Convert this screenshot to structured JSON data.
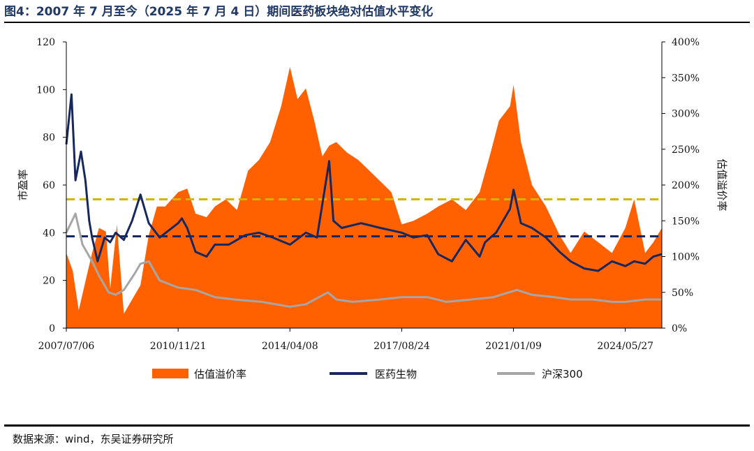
{
  "header": {
    "title": "图4：2007 年 7 月至今（2025 年 7 月 4 日）期间医药板块绝对估值水平变化"
  },
  "footer": {
    "source": "数据来源：wind，东吴证券研究所"
  },
  "chart_data": {
    "type": "line",
    "title": "",
    "ylabel_left": "市盈率",
    "ylabel_right": "估值溢价率",
    "ylim_left": [
      0,
      120
    ],
    "ylim_right": [
      0,
      4.0
    ],
    "yticks_left": [
      "0",
      "20",
      "40",
      "60",
      "80",
      "100",
      "120"
    ],
    "yticks_right": [
      "0%",
      "50%",
      "100%",
      "150%",
      "200%",
      "250%",
      "300%",
      "350%",
      "400%"
    ],
    "xlim": [
      "2007/07/06",
      "2025/07/04"
    ],
    "xtick_labels": [
      "2007/07/06",
      "2010/11/21",
      "2014/04/08",
      "2017/08/24",
      "2021/01/09",
      "2024/05/27"
    ],
    "reference_lines": [
      {
        "value": 54,
        "axis": "left",
        "color": "#d4b400",
        "style": "dashed"
      },
      {
        "value": 38.5,
        "axis": "left",
        "color": "#16285e",
        "style": "dashed"
      }
    ],
    "legend": [
      "估值溢价率",
      "医药生物",
      "沪深300"
    ],
    "legend_position": "bottom",
    "colors": {
      "premium": "#ff6000",
      "pharma": "#16285e",
      "hs300": "#a6a6a6"
    },
    "series": [
      {
        "name": "估值溢价率",
        "kind": "area",
        "axis": "right",
        "x": [
          "2007/07/06",
          "2007/09/15",
          "2007/11/20",
          "2008/02/01",
          "2008/04/15",
          "2008/07/01",
          "2008/09/15",
          "2008/11/01",
          "2009/01/15",
          "2009/04/01",
          "2009/07/01",
          "2009/10/01",
          "2010/01/01",
          "2010/04/01",
          "2010/07/01",
          "2010/11/21",
          "2011/03/01",
          "2011/06/01",
          "2011/10/01",
          "2012/01/01",
          "2012/05/01",
          "2012/09/01",
          "2013/01/01",
          "2013/05/01",
          "2013/09/01",
          "2014/01/01",
          "2014/04/08",
          "2014/07/01",
          "2014/10/01",
          "2015/01/01",
          "2015/04/01",
          "2015/06/15",
          "2015/09/01",
          "2016/01/01",
          "2016/05/01",
          "2016/09/01",
          "2017/01/01",
          "2017/05/01",
          "2017/08/24",
          "2018/01/01",
          "2018/06/01",
          "2018/10/01",
          "2019/03/01",
          "2019/08/01",
          "2020/01/01",
          "2020/05/01",
          "2020/08/01",
          "2020/12/01",
          "2021/01/09",
          "2021/04/01",
          "2021/08/01",
          "2022/01/01",
          "2022/06/01",
          "2022/10/01",
          "2023/03/01",
          "2023/08/01",
          "2024/01/01",
          "2024/05/27",
          "2024/09/01",
          "2025/01/01",
          "2025/04/01",
          "2025/07/04"
        ],
        "values": [
          1.05,
          0.8,
          0.25,
          0.65,
          1.05,
          1.4,
          1.35,
          0.55,
          1.45,
          0.2,
          0.4,
          0.6,
          1.3,
          1.7,
          1.7,
          1.9,
          1.95,
          1.6,
          1.55,
          1.7,
          1.8,
          1.65,
          2.2,
          2.35,
          2.6,
          3.1,
          3.65,
          3.2,
          3.35,
          2.9,
          2.4,
          2.55,
          2.6,
          2.45,
          2.35,
          2.2,
          2.05,
          1.9,
          1.45,
          1.5,
          1.6,
          1.7,
          1.8,
          1.65,
          1.9,
          2.45,
          2.9,
          3.1,
          3.4,
          2.6,
          2.0,
          1.7,
          1.3,
          1.05,
          1.35,
          1.2,
          1.05,
          1.4,
          1.8,
          1.05,
          1.2,
          1.4
        ]
      },
      {
        "name": "医药生物",
        "kind": "line",
        "axis": "left",
        "x": [
          "2007/07/06",
          "2007/09/01",
          "2007/10/15",
          "2007/12/15",
          "2008/02/01",
          "2008/03/15",
          "2008/04/15",
          "2008/06/15",
          "2008/09/01",
          "2008/11/01",
          "2009/01/01",
          "2009/04/01",
          "2009/07/01",
          "2009/10/01",
          "2010/01/01",
          "2010/05/01",
          "2010/11/21",
          "2011/01/01",
          "2011/03/01",
          "2011/06/01",
          "2011/10/01",
          "2012/01/01",
          "2012/06/01",
          "2012/12/01",
          "2013/05/01",
          "2013/10/01",
          "2014/04/08",
          "2014/10/01",
          "2015/02/01",
          "2015/06/15",
          "2015/08/01",
          "2015/11/01",
          "2016/06/01",
          "2017/01/01",
          "2017/08/24",
          "2018/01/01",
          "2018/06/01",
          "2018/10/01",
          "2019/03/01",
          "2019/08/01",
          "2020/01/01",
          "2020/03/01",
          "2020/07/01",
          "2020/12/01",
          "2021/01/09",
          "2021/04/01",
          "2021/08/01",
          "2022/01/01",
          "2022/06/01",
          "2022/10/01",
          "2023/03/01",
          "2023/08/01",
          "2024/01/01",
          "2024/05/27",
          "2024/09/01",
          "2025/01/01",
          "2025/04/01",
          "2025/07/04"
        ],
        "values": [
          77,
          98,
          62,
          74,
          62,
          45,
          38,
          28,
          38,
          36,
          40,
          37,
          45,
          56,
          44,
          38,
          44,
          46,
          42,
          32,
          30,
          35,
          35,
          39,
          40,
          38,
          35,
          40,
          38,
          70,
          45,
          42,
          44,
          42,
          40,
          38,
          39,
          31,
          28,
          37,
          30,
          36,
          40,
          50,
          58,
          44,
          42,
          38,
          32,
          28,
          25,
          24,
          28,
          26,
          28,
          27,
          30,
          31
        ]
      },
      {
        "name": "沪深300",
        "kind": "line",
        "axis": "left",
        "x": [
          "2007/07/06",
          "2007/10/15",
          "2008/01/01",
          "2008/04/15",
          "2008/07/01",
          "2008/10/15",
          "2009/01/01",
          "2009/04/01",
          "2009/08/01",
          "2009/10/01",
          "2010/01/01",
          "2010/05/01",
          "2010/11/21",
          "2011/06/01",
          "2012/01/01",
          "2012/08/01",
          "2013/06/01",
          "2014/04/08",
          "2014/10/01",
          "2015/06/01",
          "2015/09/01",
          "2016/03/01",
          "2017/01/01",
          "2017/08/24",
          "2018/06/01",
          "2019/01/01",
          "2019/10/01",
          "2020/06/01",
          "2021/02/15",
          "2021/08/01",
          "2022/04/01",
          "2022/10/01",
          "2023/06/01",
          "2024/01/01",
          "2024/05/27",
          "2025/01/01",
          "2025/07/04"
        ],
        "values": [
          40,
          48,
          35,
          28,
          22,
          15,
          14,
          16,
          23,
          27,
          28,
          20,
          17,
          16,
          13,
          12,
          11,
          9,
          10,
          15,
          12,
          11,
          12,
          13,
          13,
          11,
          12,
          13,
          16,
          14,
          13,
          12,
          12,
          11,
          11,
          12,
          12
        ]
      }
    ]
  }
}
